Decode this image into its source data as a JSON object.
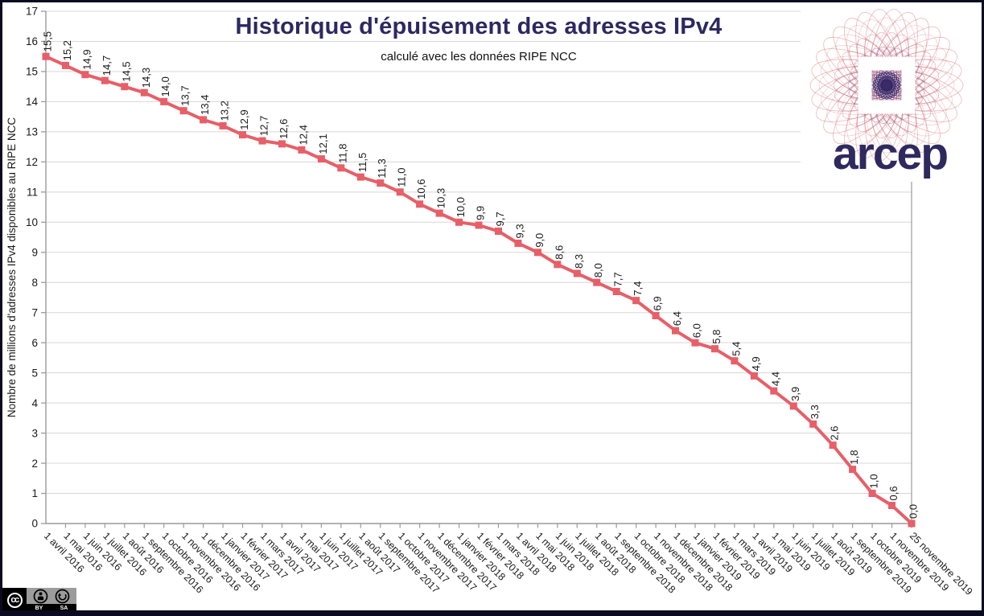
{
  "title": "Historique d'épuisement des adresses IPv4",
  "subtitle": "calculé avec les données RIPE NCC",
  "logo": {
    "wordmark": "arcep"
  },
  "license": {
    "cc": "cc",
    "by": "BY",
    "sa": "SA"
  },
  "colors": {
    "line": "#e75f68",
    "title_navy": "#2d2861",
    "grid": "#d7d7d7",
    "axis": "#9a9a9a",
    "text": "#1a1a1a",
    "border": "#0a0a20",
    "logo_red": "#d87e81",
    "logo_mid": "#c75f73",
    "logo_purple": "#7a4879",
    "logo_core": "#342564",
    "badge_gray": "#9c9c9c"
  },
  "chart_data": {
    "type": "line",
    "title": "Historique d'épuisement des adresses IPv4",
    "subtitle": "calculé avec les données RIPE NCC",
    "xlabel": "",
    "ylabel": "Nombre de millions d'adresses IPv4 disponibles au RIPE NCC",
    "ylim": [
      0,
      17
    ],
    "ytick_step": 1,
    "grid": true,
    "legend": "none",
    "marker": "square",
    "decimal_separator": ",",
    "categories": [
      "1 avril 2016",
      "1 mai 2016",
      "1 juin 2016",
      "1 juillet 2016",
      "1 août 2016",
      "1 septembre 2016",
      "1 octobre 2016",
      "1 novembre 2016",
      "1 décembre 2016",
      "1 janvier 2017",
      "1 février 2017",
      "1 mars 2017",
      "1 avril 2017",
      "1 mai 2017",
      "1 juin 2017",
      "1 juillet 2017",
      "1 août 2017",
      "1 septembre 2017",
      "1 octobre 2017",
      "1 novembre 2017",
      "1 décembre 2017",
      "1 janvier 2018",
      "1 février 2018",
      "1 mars 2018",
      "1 avril 2018",
      "1 mai 2018",
      "1 juin 2018",
      "1 juillet 2018",
      "1 août 2018",
      "1 septembre 2018",
      "1 octobre 2018",
      "1 novembre 2018",
      "1 décembre 2018",
      "1 janvier 2019",
      "1 février 2019",
      "1 mars 2019",
      "1 avril 2019",
      "1 mai 2019",
      "1 juin 2019",
      "1 juillet 2019",
      "1 août 2019",
      "1 septembre 2019",
      "1 octobre 2019",
      "1 novembre 2019",
      "25 novembre 2019"
    ],
    "values": [
      15.5,
      15.2,
      14.9,
      14.7,
      14.5,
      14.3,
      14.0,
      13.7,
      13.4,
      13.2,
      12.9,
      12.7,
      12.6,
      12.4,
      12.1,
      11.8,
      11.5,
      11.3,
      11.0,
      10.6,
      10.3,
      10.0,
      9.9,
      9.7,
      9.3,
      9.0,
      8.6,
      8.3,
      8.0,
      7.7,
      7.4,
      6.9,
      6.4,
      6.0,
      5.8,
      5.4,
      4.9,
      4.4,
      3.9,
      3.3,
      2.6,
      1.8,
      1.0,
      0.6,
      0.0
    ]
  }
}
